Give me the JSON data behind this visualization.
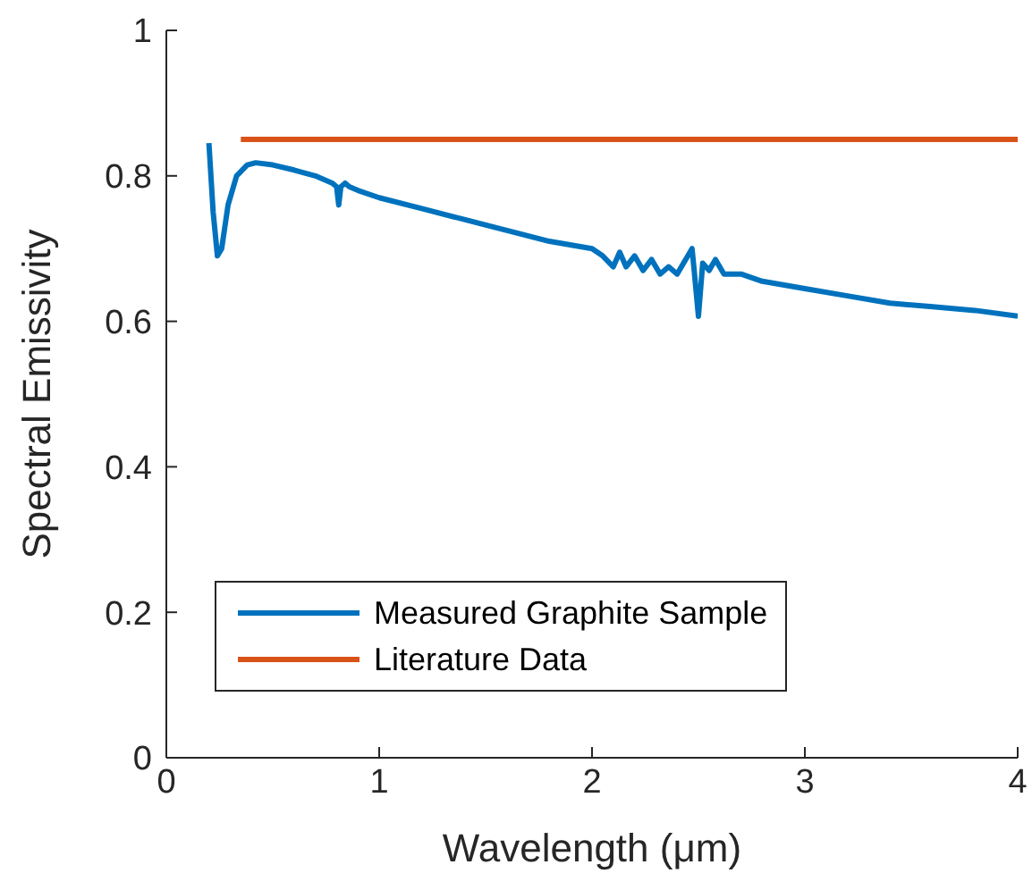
{
  "chart_data": {
    "type": "line",
    "xlabel": "Wavelength (μm)",
    "ylabel": "Spectral Emissivity",
    "xlim": [
      0,
      4
    ],
    "xticks": [
      0,
      1,
      2,
      3,
      4
    ],
    "ylim": [
      0,
      1
    ],
    "yticks": [
      0,
      0.2,
      0.4,
      0.6,
      0.8,
      1
    ],
    "legend": "bottom left",
    "marker": "none",
    "line_style": "solid",
    "series": [
      {
        "name": "Measured Graphite Sample",
        "color": "#0072bd",
        "x": [
          0.2,
          0.22,
          0.24,
          0.26,
          0.29,
          0.33,
          0.38,
          0.42,
          0.5,
          0.6,
          0.7,
          0.78,
          0.8,
          0.81,
          0.82,
          0.84,
          0.86,
          0.9,
          1.0,
          1.2,
          1.4,
          1.6,
          1.8,
          2.0,
          2.05,
          2.1,
          2.13,
          2.16,
          2.2,
          2.24,
          2.28,
          2.32,
          2.36,
          2.4,
          2.44,
          2.47,
          2.48,
          2.5,
          2.52,
          2.55,
          2.58,
          2.62,
          2.7,
          2.8,
          3.0,
          3.2,
          3.4,
          3.6,
          3.8,
          4.0
        ],
        "values": [
          0.845,
          0.75,
          0.69,
          0.7,
          0.76,
          0.8,
          0.815,
          0.818,
          0.815,
          0.808,
          0.8,
          0.79,
          0.785,
          0.76,
          0.785,
          0.79,
          0.785,
          0.78,
          0.77,
          0.755,
          0.74,
          0.725,
          0.71,
          0.7,
          0.69,
          0.675,
          0.695,
          0.675,
          0.69,
          0.67,
          0.685,
          0.665,
          0.675,
          0.665,
          0.685,
          0.7,
          0.67,
          0.607,
          0.68,
          0.67,
          0.685,
          0.665,
          0.665,
          0.655,
          0.645,
          0.635,
          0.625,
          0.62,
          0.615,
          0.607
        ]
      },
      {
        "name": "Literature Data",
        "color": "#d95319",
        "x": [
          0.35,
          4.0
        ],
        "values": [
          0.85,
          0.85
        ]
      }
    ]
  }
}
